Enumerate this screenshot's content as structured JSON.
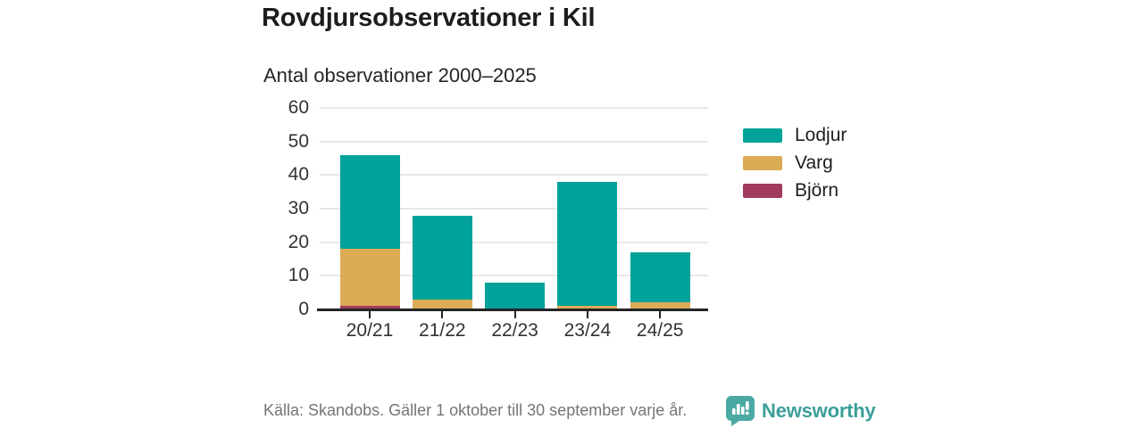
{
  "header": {
    "title": "Rovdjursobservationer i Kil"
  },
  "chart_data": {
    "type": "bar",
    "stacked": true,
    "title": "Antal observationer 2000–2025",
    "categories": [
      "20/21",
      "21/22",
      "22/23",
      "23/24",
      "24/25"
    ],
    "series": [
      {
        "name": "Lodjur",
        "color": "#00a29a",
        "values": [
          28,
          25,
          8,
          37,
          15
        ]
      },
      {
        "name": "Varg",
        "color": "#dcab55",
        "values": [
          17,
          3,
          0,
          1,
          2
        ]
      },
      {
        "name": "Björn",
        "color": "#a33a5f",
        "values": [
          1,
          0,
          0,
          0,
          0
        ]
      }
    ],
    "stack_order_bottom_to_top": [
      "Björn",
      "Varg",
      "Lodjur"
    ],
    "totals": [
      46,
      28,
      8,
      38,
      17
    ],
    "xlabel": "",
    "ylabel": "",
    "ylim": [
      0,
      60
    ],
    "yticks": [
      0,
      10,
      20,
      30,
      40,
      50,
      60
    ],
    "grid": "horizontal",
    "legend_position": "right"
  },
  "footer": {
    "source": "Källa: Skandobs. Gäller 1 oktober till 30 september varje år.",
    "brand": "Newsworthy"
  },
  "colors": {
    "teal": "#00a29a",
    "gold": "#dcab55",
    "maroon": "#a33a5f",
    "brand_teal": "#3c9e99",
    "logo_teal": "#4aa9a3",
    "grid": "#e8e8e8",
    "axis": "#252525",
    "muted_text": "#757575"
  }
}
